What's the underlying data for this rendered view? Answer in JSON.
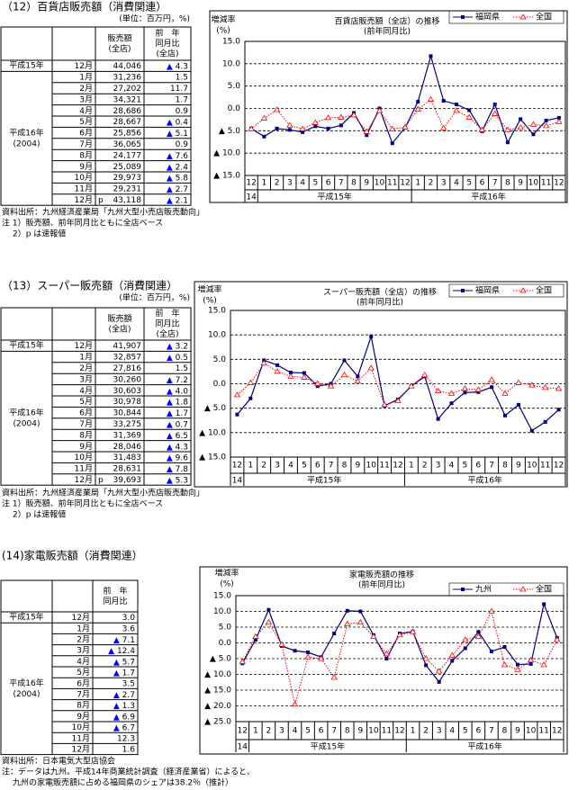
{
  "sections": [
    {
      "title": "（12）百貨店販売額（消費関連）",
      "unit": "(単位：百万円，%)",
      "columns": [
        [
          "販売額",
          "(全店)"
        ],
        [
          "前　年",
          "同月比",
          "(全店)"
        ]
      ],
      "groups": [
        {
          "year": "平成15年",
          "rows": [
            {
              "month": "12月",
              "sales": "44,046",
              "yoy": "▲ 4.3"
            }
          ]
        },
        {
          "year": "平成16年",
          "year_sub": "(2004)",
          "rows": [
            {
              "month": "1月",
              "sales": "31,236",
              "yoy": "1.5"
            },
            {
              "month": "2月",
              "sales": "27,202",
              "yoy": "11.7"
            },
            {
              "month": "3月",
              "sales": "34,321",
              "yoy": "1.7"
            },
            {
              "month": "4月",
              "sales": "28,686",
              "yoy": "0.9"
            },
            {
              "month": "5月",
              "sales": "28,667",
              "yoy": "▲ 0.4"
            },
            {
              "month": "6月",
              "sales": "25,856",
              "yoy": "▲ 5.1"
            },
            {
              "month": "7月",
              "sales": "36,065",
              "yoy": "0.9"
            },
            {
              "month": "8月",
              "sales": "24,177",
              "yoy": "▲ 7.6"
            },
            {
              "month": "9月",
              "sales": "25,089",
              "yoy": "▲ 2.4"
            },
            {
              "month": "10月",
              "sales": "29,973",
              "yoy": "▲ 5.8"
            },
            {
              "month": "11月",
              "sales": "29,231",
              "yoy": "▲ 2.7"
            },
            {
              "month": "12月",
              "mark": "p",
              "sales": "43,118",
              "yoy": "▲ 2.1"
            }
          ]
        }
      ],
      "notes": [
        "資料出所：九州経済産業局「九州大型小売店販売動向」",
        "注 1）販売額、前年同月比ともに全店ベース",
        "2）p は速報値"
      ]
    },
    {
      "title": "（13）スーパー販売額（消費関連）",
      "unit": "(単位：百万円，%)",
      "columns": [
        [
          "販売額",
          "(全店)"
        ],
        [
          "前　年",
          "同月比",
          "(全店)"
        ]
      ],
      "groups": [
        {
          "year": "平成15年",
          "rows": [
            {
              "month": "12月",
              "sales": "41,907",
              "yoy": "▲ 3.2"
            }
          ]
        },
        {
          "year": "平成16年",
          "year_sub": "(2004)",
          "rows": [
            {
              "month": "1月",
              "sales": "32,857",
              "yoy": "▲ 0.5"
            },
            {
              "month": "2月",
              "sales": "27,816",
              "yoy": "1.5"
            },
            {
              "month": "3月",
              "sales": "30,260",
              "yoy": "▲ 7.2"
            },
            {
              "month": "4月",
              "sales": "30,603",
              "yoy": "▲ 4.0"
            },
            {
              "month": "5月",
              "sales": "30,978",
              "yoy": "▲ 1.8"
            },
            {
              "month": "6月",
              "sales": "30,844",
              "yoy": "▲ 1.7"
            },
            {
              "month": "7月",
              "sales": "33,275",
              "yoy": "▲ 0.7"
            },
            {
              "month": "8月",
              "sales": "31,369",
              "yoy": "▲ 6.5"
            },
            {
              "month": "9月",
              "sales": "28,046",
              "yoy": "▲ 4.3"
            },
            {
              "month": "10月",
              "sales": "31,483",
              "yoy": "▲ 9.6"
            },
            {
              "month": "11月",
              "sales": "28,631",
              "yoy": "▲ 7.8"
            },
            {
              "month": "12月",
              "mark": "p",
              "sales": "39,693",
              "yoy": "▲ 5.3"
            }
          ]
        }
      ],
      "notes": [
        "資料出所：九州経済産業局「九州大型小売店販売動向」",
        "注 1）販売額、前年同月比ともに全店ベース",
        "2）p は速報値"
      ]
    },
    {
      "title": "(14)家電販売額（消費関連）",
      "columns": [
        [
          "前　年",
          "同月比"
        ]
      ],
      "groups": [
        {
          "year": "平成15年",
          "rows": [
            {
              "month": "12月",
              "yoy": "3.0"
            }
          ]
        },
        {
          "year": "平成16年",
          "year_sub": "(2004)",
          "rows": [
            {
              "month": "1月",
              "yoy": "3.6"
            },
            {
              "month": "2月",
              "yoy": "▲ 7.1"
            },
            {
              "month": "3月",
              "yoy": "▲ 12.4"
            },
            {
              "month": "4月",
              "yoy": "▲ 5.7"
            },
            {
              "month": "5月",
              "yoy": "▲ 1.7"
            },
            {
              "month": "6月",
              "yoy": "3.5"
            },
            {
              "month": "7月",
              "yoy": "▲ 2.7"
            },
            {
              "month": "8月",
              "yoy": "▲ 1.3"
            },
            {
              "month": "9月",
              "yoy": "▲ 6.9"
            },
            {
              "month": "10月",
              "yoy": "▲ 6.7"
            },
            {
              "month": "11月",
              "yoy": "12.3"
            },
            {
              "month": "12月",
              "yoy": "1.6"
            }
          ]
        }
      ],
      "notes": [
        "資料出所：日本電気大型店協会",
        "注：データは九州。平成14年商業統計調査（経済産業省）によると、",
        "九州の家電販売額に占める福岡県のシェアは38.2％（推計）"
      ]
    }
  ],
  "chart_data": [
    {
      "type": "line",
      "title": "百貨店販売額（全店）の推移",
      "subtitle": "(前年同月比)",
      "y_label": "増減率",
      "y_unit": "(%)",
      "categories": [
        "12",
        "1",
        "2",
        "3",
        "4",
        "5",
        "6",
        "7",
        "8",
        "9",
        "10",
        "11",
        "12",
        "1",
        "2",
        "3",
        "4",
        "5",
        "6",
        "7",
        "8",
        "9",
        "10",
        "11",
        "12"
      ],
      "x_groups": [
        {
          "label": "14",
          "start": 0,
          "end": 0
        },
        {
          "label": "平成15年",
          "start": 1,
          "end": 12
        },
        {
          "label": "平成16年",
          "start": 13,
          "end": 24
        }
      ],
      "ylim": [
        -15,
        15
      ],
      "yticks": [
        {
          "value": 15,
          "label": "15.0"
        },
        {
          "value": 10,
          "label": "10.0"
        },
        {
          "value": 5,
          "label": "5.0"
        },
        {
          "value": 0,
          "label": "0.0"
        },
        {
          "value": -5,
          "label": "▲ 5.0"
        },
        {
          "value": -10,
          "label": "▲ 10.0"
        },
        {
          "value": -15,
          "label": "▲ 15.0"
        }
      ],
      "grid": true,
      "legend": "top-right",
      "series": [
        {
          "name": "福岡県",
          "color": "#000080",
          "values": [
            -4.5,
            -6.3,
            -4.5,
            -4.8,
            -5.3,
            -4.0,
            -4.5,
            -3.8,
            -1.0,
            -6.0,
            0.0,
            -7.8,
            -4.3,
            1.5,
            11.7,
            1.7,
            0.9,
            -0.4,
            -5.1,
            0.9,
            -7.6,
            -2.4,
            -5.8,
            -2.7,
            -2.1
          ]
        },
        {
          "name": "全国",
          "color": "#ff0000",
          "values": [
            -4.6,
            -2.2,
            -0.3,
            -3.8,
            -4.6,
            -3.2,
            -2.1,
            -2.0,
            -1.5,
            -5.2,
            -0.5,
            -4.6,
            -4.2,
            -0.2,
            2.0,
            -4.4,
            -0.5,
            -2.0,
            -4.8,
            -1.2,
            -4.8,
            -4.3,
            -3.6,
            -3.9,
            -3.0
          ]
        }
      ]
    },
    {
      "type": "line",
      "title": "スーパー販売額（全店）の推移",
      "subtitle": "(前年同月比)",
      "y_label": "増減率",
      "y_unit": "(%)",
      "categories": [
        "12",
        "1",
        "2",
        "3",
        "4",
        "5",
        "6",
        "7",
        "8",
        "9",
        "10",
        "11",
        "12",
        "1",
        "2",
        "3",
        "4",
        "5",
        "6",
        "7",
        "8",
        "9",
        "10",
        "11",
        "12"
      ],
      "x_groups": [
        {
          "label": "14",
          "start": 0,
          "end": 0
        },
        {
          "label": "平成15年",
          "start": 1,
          "end": 12
        },
        {
          "label": "平成16年",
          "start": 13,
          "end": 24
        }
      ],
      "ylim": [
        -15,
        15
      ],
      "yticks": [
        {
          "value": 15,
          "label": "15.0"
        },
        {
          "value": 10,
          "label": "10.0"
        },
        {
          "value": 5,
          "label": "5.0"
        },
        {
          "value": 0,
          "label": "0.0"
        },
        {
          "value": -5,
          "label": "▲ 5.0"
        },
        {
          "value": -10,
          "label": "▲ 10.0"
        },
        {
          "value": -15,
          "label": "▲ 15.0"
        }
      ],
      "grid": true,
      "legend": "top-right",
      "series": [
        {
          "name": "福岡県",
          "color": "#000080",
          "values": [
            -6.3,
            -3.0,
            4.8,
            3.8,
            2.3,
            2.2,
            -0.5,
            0.0,
            4.8,
            1.5,
            9.7,
            -4.5,
            -3.2,
            -0.5,
            1.5,
            -7.2,
            -4.0,
            -1.8,
            -1.7,
            -0.7,
            -6.5,
            -4.3,
            -9.6,
            -7.8,
            -5.3
          ]
        },
        {
          "name": "全国",
          "color": "#ff0000",
          "values": [
            -2.3,
            0.2,
            4.2,
            2.5,
            1.5,
            1.3,
            0.0,
            -0.5,
            1.8,
            0.5,
            3.2,
            -4.3,
            -3.5,
            -0.5,
            1.8,
            -1.5,
            -2.0,
            -1.0,
            -1.2,
            0.8,
            -2.0,
            0.2,
            -0.3,
            -0.8,
            -1.0
          ]
        }
      ]
    },
    {
      "type": "line",
      "title": "家電販売額の推移",
      "subtitle": "(前年同月比)",
      "y_label": "増減率",
      "y_unit": "(%)",
      "categories": [
        "12",
        "1",
        "2",
        "3",
        "4",
        "5",
        "6",
        "7",
        "8",
        "9",
        "10",
        "11",
        "12",
        "1",
        "2",
        "3",
        "4",
        "5",
        "6",
        "7",
        "8",
        "9",
        "10",
        "11",
        "12"
      ],
      "x_groups": [
        {
          "label": "14",
          "start": 0,
          "end": 0
        },
        {
          "label": "平成15年",
          "start": 1,
          "end": 12
        },
        {
          "label": "平成16年",
          "start": 13,
          "end": 24
        }
      ],
      "ylim": [
        -25,
        15
      ],
      "yticks": [
        {
          "value": 15,
          "label": "15.0"
        },
        {
          "value": 10,
          "label": "10.0"
        },
        {
          "value": 5,
          "label": "5.0"
        },
        {
          "value": 0,
          "label": "0.0"
        },
        {
          "value": -5,
          "label": "▲ 5.0"
        },
        {
          "value": -10,
          "label": "▲ 10.0"
        },
        {
          "value": -15,
          "label": "▲ 15.0"
        },
        {
          "value": -20,
          "label": "▲ 20.0"
        },
        {
          "value": -25,
          "label": "▲ 25.0"
        }
      ],
      "grid": true,
      "legend": "top-right",
      "series": [
        {
          "name": "九州",
          "color": "#000080",
          "values": [
            -6.5,
            1.0,
            10.5,
            -1.0,
            -2.5,
            -3.0,
            -4.5,
            3.0,
            10.2,
            10.0,
            2.5,
            -5.0,
            3.0,
            3.6,
            -7.1,
            -12.4,
            -5.7,
            -1.7,
            3.5,
            -2.7,
            -1.3,
            -6.9,
            -6.7,
            12.3,
            1.6
          ]
        },
        {
          "name": "全国",
          "color": "#ff0000",
          "values": [
            -6.0,
            2.0,
            6.5,
            -0.5,
            -19.5,
            -4.5,
            -5.0,
            -11.0,
            6.0,
            6.5,
            2.0,
            -3.5,
            2.5,
            3.5,
            -5.0,
            -9.0,
            -4.0,
            1.0,
            2.0,
            10.0,
            -7.0,
            -8.5,
            -5.5,
            -7.0,
            1.0
          ]
        }
      ]
    }
  ]
}
